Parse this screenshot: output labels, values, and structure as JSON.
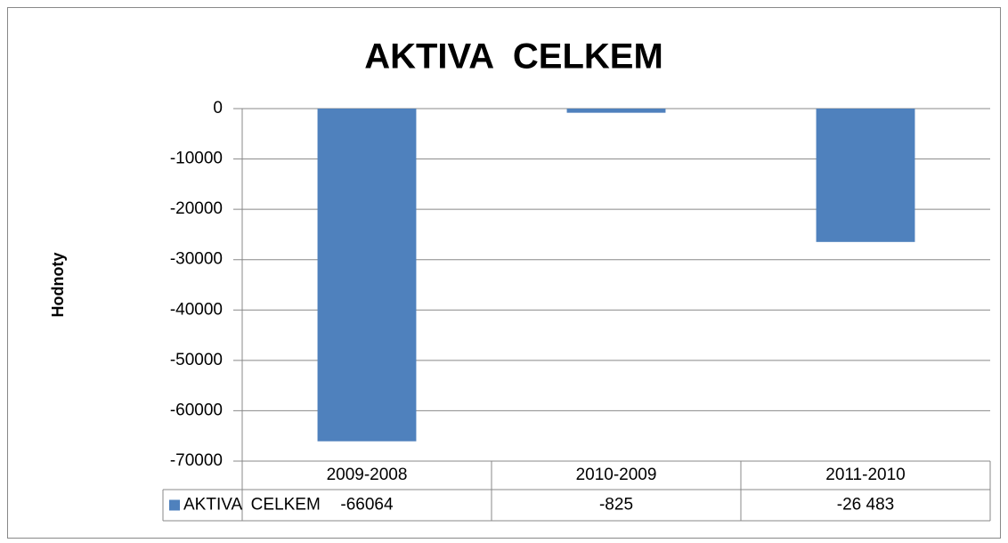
{
  "chart_data": {
    "type": "bar",
    "title": "AKTIVA  CELKEM",
    "y_label": "Hodnoty",
    "categories": [
      "2009-2008",
      "2010-2009",
      "2011-2010"
    ],
    "series": [
      {
        "name": "AKTIVA  CELKEM",
        "color": "#4f81bd",
        "values": [
          -66064,
          -825,
          -26483
        ],
        "value_labels": [
          "-66064",
          "-825",
          "-26 483"
        ]
      }
    ],
    "ylim": [
      -70000,
      0
    ],
    "yticks": [
      0,
      -10000,
      -20000,
      -30000,
      -40000,
      -50000,
      -60000,
      -70000
    ],
    "grid": true,
    "data_table": true
  }
}
